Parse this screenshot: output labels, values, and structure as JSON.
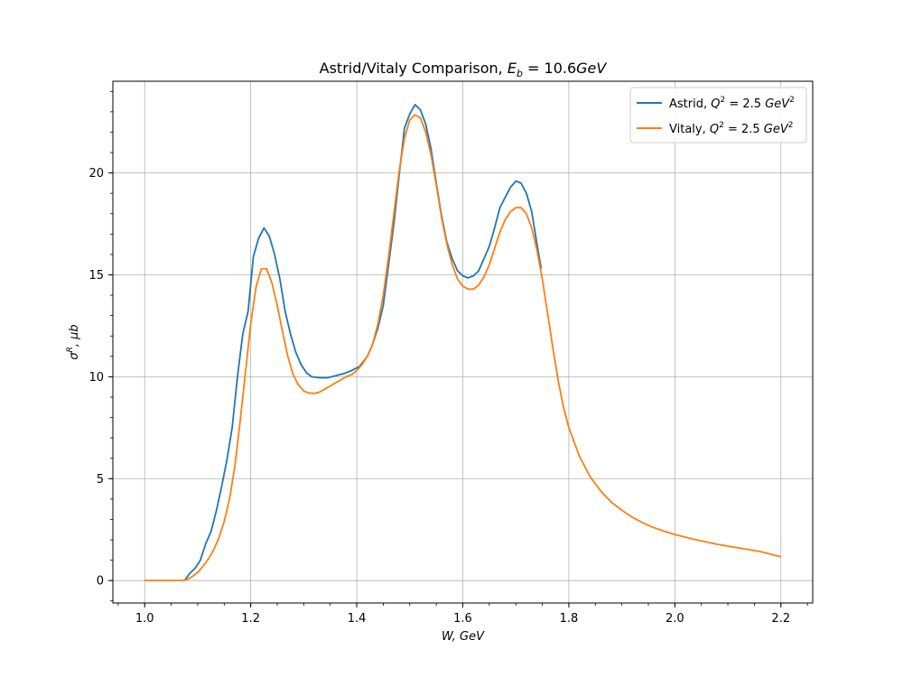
{
  "chart_data": {
    "type": "line",
    "title": {
      "prefix": "Astrid/Vitaly Comparison, ",
      "math_var": "E",
      "math_sub": "b",
      "math_eq": " = 10.6",
      "math_unit": "GeV"
    },
    "xlabel": "W, GeV",
    "ylabel": {
      "sym": "σ",
      "sup": "R",
      "rest": ", μb"
    },
    "xlim": [
      0.94,
      2.26
    ],
    "ylim": [
      -1.1,
      24.5
    ],
    "xticks": [
      1.0,
      1.2,
      1.4,
      1.6,
      1.8,
      2.0,
      2.2
    ],
    "xtick_labels": [
      "1.0",
      "1.2",
      "1.4",
      "1.6",
      "1.8",
      "2.0",
      "2.2"
    ],
    "yticks": [
      0,
      5,
      10,
      15,
      20
    ],
    "ytick_labels": [
      "0",
      "5",
      "10",
      "15",
      "20"
    ],
    "grid": true,
    "legend_position": "top-right",
    "series": [
      {
        "name": "Astrid, Q² = 2.5 GeV²",
        "legend": {
          "prefix": "Astrid, ",
          "var": "Q",
          "sup": "2",
          "eq": " = 2.5 ",
          "unit": "GeV",
          "unit_sup": "2"
        },
        "color": "#1f77b4",
        "points": [
          [
            1.075,
            0.0
          ],
          [
            1.085,
            0.35
          ],
          [
            1.095,
            0.6
          ],
          [
            1.105,
            1.0
          ],
          [
            1.115,
            1.8
          ],
          [
            1.125,
            2.4
          ],
          [
            1.135,
            3.4
          ],
          [
            1.145,
            4.6
          ],
          [
            1.155,
            5.9
          ],
          [
            1.165,
            7.5
          ],
          [
            1.175,
            10.0
          ],
          [
            1.185,
            12.1
          ],
          [
            1.195,
            13.2
          ],
          [
            1.205,
            15.9
          ],
          [
            1.215,
            16.8
          ],
          [
            1.225,
            17.3
          ],
          [
            1.235,
            16.9
          ],
          [
            1.245,
            16.0
          ],
          [
            1.255,
            14.8
          ],
          [
            1.265,
            13.2
          ],
          [
            1.275,
            12.1
          ],
          [
            1.285,
            11.2
          ],
          [
            1.295,
            10.6
          ],
          [
            1.305,
            10.2
          ],
          [
            1.315,
            10.0
          ],
          [
            1.33,
            9.95
          ],
          [
            1.345,
            9.95
          ],
          [
            1.36,
            10.05
          ],
          [
            1.375,
            10.15
          ],
          [
            1.39,
            10.3
          ],
          [
            1.405,
            10.5
          ],
          [
            1.42,
            11.0
          ],
          [
            1.43,
            11.6
          ],
          [
            1.44,
            12.4
          ],
          [
            1.45,
            13.5
          ],
          [
            1.46,
            15.5
          ],
          [
            1.47,
            17.5
          ],
          [
            1.48,
            19.9
          ],
          [
            1.49,
            22.2
          ],
          [
            1.5,
            22.9
          ],
          [
            1.51,
            23.35
          ],
          [
            1.52,
            23.1
          ],
          [
            1.53,
            22.4
          ],
          [
            1.54,
            21.2
          ],
          [
            1.55,
            19.5
          ],
          [
            1.56,
            17.9
          ],
          [
            1.57,
            16.6
          ],
          [
            1.58,
            15.8
          ],
          [
            1.59,
            15.2
          ],
          [
            1.6,
            14.95
          ],
          [
            1.61,
            14.85
          ],
          [
            1.62,
            14.95
          ],
          [
            1.63,
            15.2
          ],
          [
            1.64,
            15.8
          ],
          [
            1.65,
            16.4
          ],
          [
            1.66,
            17.3
          ],
          [
            1.67,
            18.3
          ],
          [
            1.68,
            18.8
          ],
          [
            1.69,
            19.3
          ],
          [
            1.7,
            19.6
          ],
          [
            1.71,
            19.5
          ],
          [
            1.72,
            19.0
          ],
          [
            1.73,
            18.1
          ],
          [
            1.74,
            16.5
          ],
          [
            1.748,
            15.3
          ]
        ]
      },
      {
        "name": "Vitaly, Q² = 2.5 GeV²",
        "legend": {
          "prefix": "Vitaly, ",
          "var": "Q",
          "sup": "2",
          "eq": " = 2.5 ",
          "unit": "GeV",
          "unit_sup": "2"
        },
        "color": "#ff7f0e",
        "points": [
          [
            1.0,
            0.0
          ],
          [
            1.07,
            0.0
          ],
          [
            1.08,
            0.05
          ],
          [
            1.09,
            0.2
          ],
          [
            1.1,
            0.4
          ],
          [
            1.11,
            0.7
          ],
          [
            1.12,
            1.05
          ],
          [
            1.13,
            1.5
          ],
          [
            1.14,
            2.1
          ],
          [
            1.15,
            2.9
          ],
          [
            1.16,
            4.0
          ],
          [
            1.17,
            5.6
          ],
          [
            1.18,
            7.8
          ],
          [
            1.19,
            10.2
          ],
          [
            1.2,
            12.6
          ],
          [
            1.21,
            14.4
          ],
          [
            1.22,
            15.3
          ],
          [
            1.23,
            15.3
          ],
          [
            1.24,
            14.6
          ],
          [
            1.25,
            13.5
          ],
          [
            1.26,
            12.2
          ],
          [
            1.27,
            11.0
          ],
          [
            1.28,
            10.1
          ],
          [
            1.29,
            9.6
          ],
          [
            1.3,
            9.3
          ],
          [
            1.31,
            9.2
          ],
          [
            1.32,
            9.18
          ],
          [
            1.33,
            9.25
          ],
          [
            1.34,
            9.4
          ],
          [
            1.35,
            9.55
          ],
          [
            1.36,
            9.7
          ],
          [
            1.37,
            9.85
          ],
          [
            1.38,
            10.0
          ],
          [
            1.39,
            10.1
          ],
          [
            1.4,
            10.3
          ],
          [
            1.41,
            10.6
          ],
          [
            1.42,
            11.0
          ],
          [
            1.43,
            11.6
          ],
          [
            1.44,
            12.6
          ],
          [
            1.45,
            14.0
          ],
          [
            1.46,
            15.9
          ],
          [
            1.47,
            18.0
          ],
          [
            1.48,
            20.1
          ],
          [
            1.49,
            21.7
          ],
          [
            1.5,
            22.6
          ],
          [
            1.51,
            22.85
          ],
          [
            1.52,
            22.7
          ],
          [
            1.53,
            22.0
          ],
          [
            1.54,
            20.9
          ],
          [
            1.55,
            19.4
          ],
          [
            1.56,
            17.8
          ],
          [
            1.57,
            16.5
          ],
          [
            1.58,
            15.5
          ],
          [
            1.59,
            14.8
          ],
          [
            1.6,
            14.45
          ],
          [
            1.61,
            14.3
          ],
          [
            1.62,
            14.3
          ],
          [
            1.63,
            14.5
          ],
          [
            1.64,
            14.9
          ],
          [
            1.65,
            15.5
          ],
          [
            1.66,
            16.3
          ],
          [
            1.67,
            17.1
          ],
          [
            1.68,
            17.7
          ],
          [
            1.69,
            18.1
          ],
          [
            1.7,
            18.3
          ],
          [
            1.71,
            18.3
          ],
          [
            1.72,
            18.0
          ],
          [
            1.73,
            17.3
          ],
          [
            1.74,
            16.2
          ],
          [
            1.75,
            14.8
          ],
          [
            1.76,
            13.1
          ],
          [
            1.77,
            11.4
          ],
          [
            1.78,
            9.8
          ],
          [
            1.79,
            8.5
          ],
          [
            1.8,
            7.5
          ],
          [
            1.82,
            6.1
          ],
          [
            1.84,
            5.1
          ],
          [
            1.86,
            4.4
          ],
          [
            1.88,
            3.85
          ],
          [
            1.9,
            3.45
          ],
          [
            1.92,
            3.1
          ],
          [
            1.94,
            2.83
          ],
          [
            1.96,
            2.6
          ],
          [
            1.98,
            2.42
          ],
          [
            2.0,
            2.26
          ],
          [
            2.04,
            2.0
          ],
          [
            2.08,
            1.78
          ],
          [
            2.12,
            1.6
          ],
          [
            2.16,
            1.43
          ],
          [
            2.2,
            1.17
          ]
        ]
      }
    ]
  }
}
